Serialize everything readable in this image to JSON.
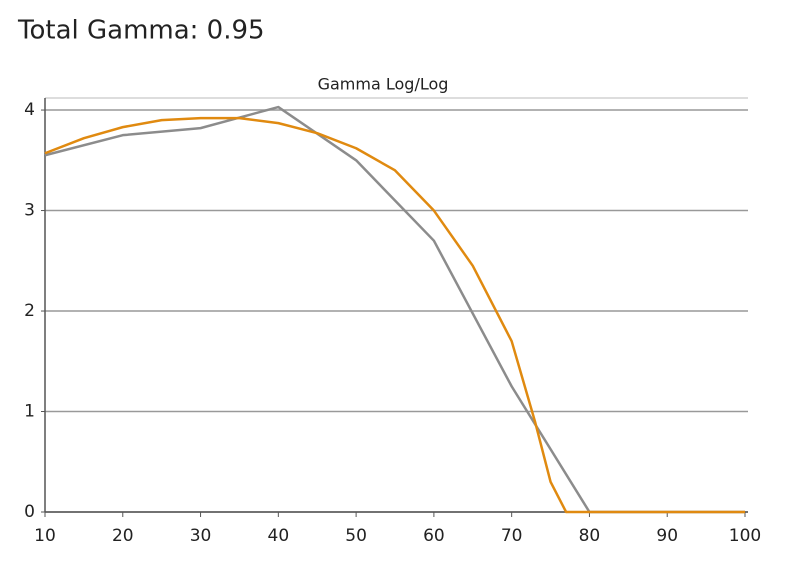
{
  "header": {
    "title": "Total Gamma: 0.95"
  },
  "chart_data": {
    "type": "line",
    "title": "Gamma Log/Log",
    "xlim": [
      10,
      100
    ],
    "xticks": [
      10,
      20,
      30,
      40,
      50,
      60,
      70,
      80,
      90,
      100
    ],
    "ylim": [
      0,
      4.1
    ],
    "yticks": [
      0,
      1,
      2,
      3,
      4
    ],
    "grid": true,
    "series": [
      {
        "color": "#8c8c8c",
        "x": [
          10,
          20,
          30,
          40,
          50,
          60,
          70,
          80,
          90,
          100
        ],
        "values": [
          3.55,
          3.75,
          3.82,
          4.03,
          3.5,
          2.7,
          1.25,
          0,
          0,
          0
        ]
      },
      {
        "color": "#e08a10",
        "x": [
          10,
          15,
          20,
          25,
          30,
          35,
          40,
          45,
          50,
          55,
          60,
          65,
          70,
          73,
          75,
          77,
          80,
          90,
          100
        ],
        "values": [
          3.57,
          3.72,
          3.83,
          3.9,
          3.92,
          3.92,
          3.87,
          3.77,
          3.62,
          3.4,
          3.0,
          2.45,
          1.7,
          0.9,
          0.3,
          0,
          0,
          0,
          0
        ]
      }
    ]
  }
}
